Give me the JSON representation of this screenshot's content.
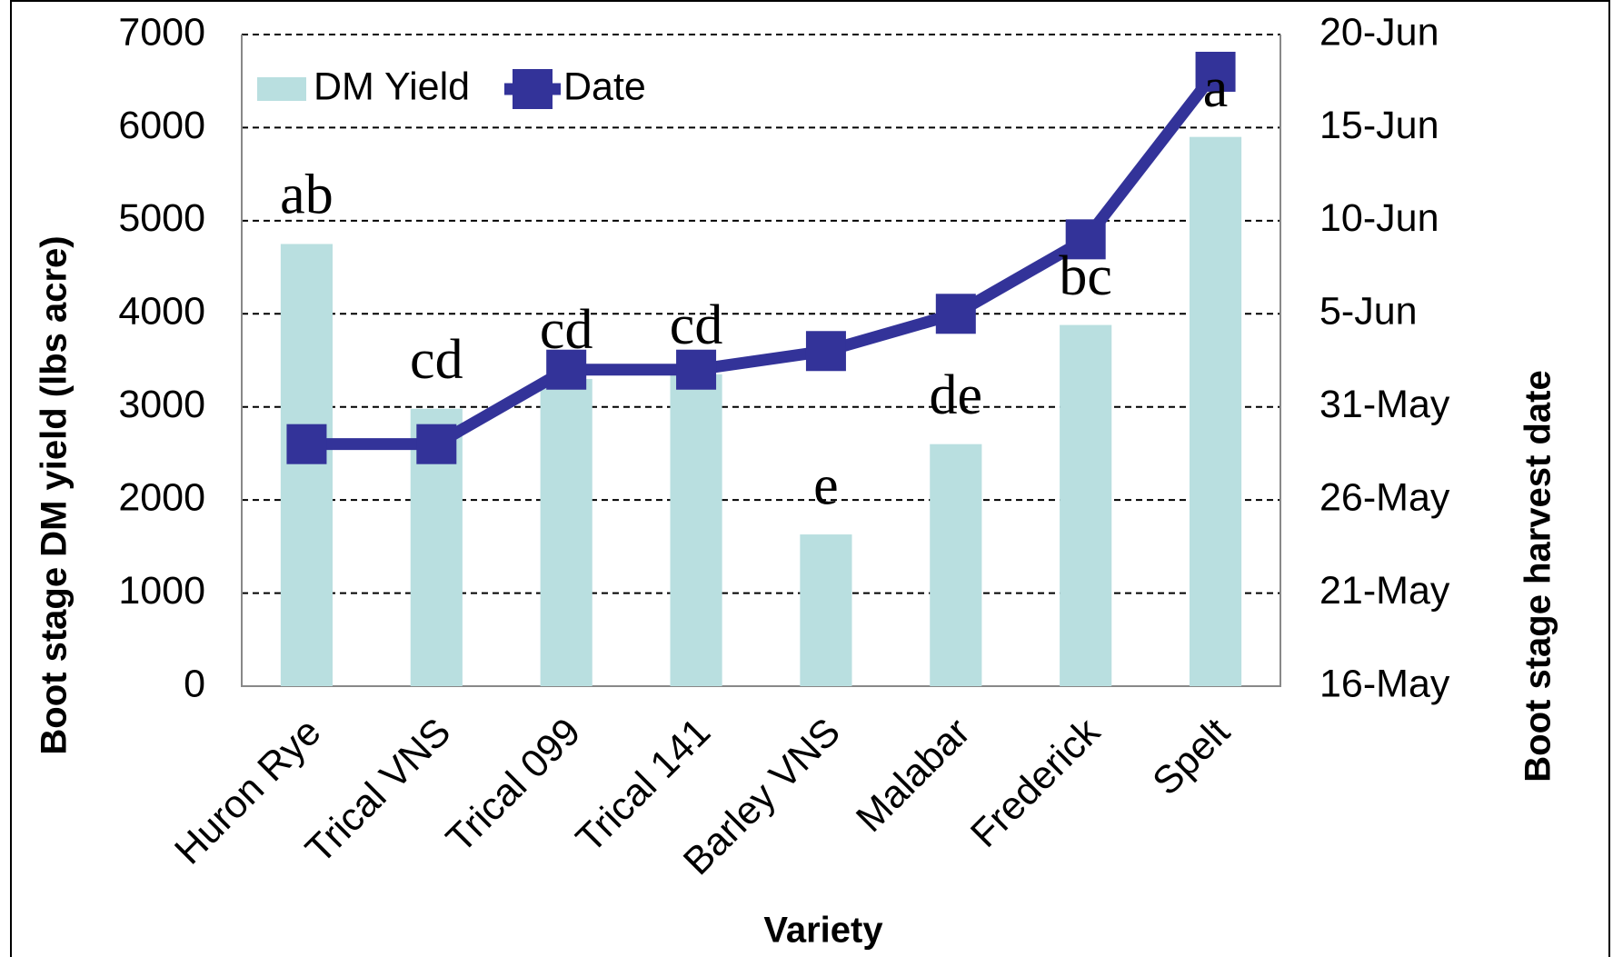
{
  "chart_data": {
    "type": "bar",
    "categories": [
      "Huron Rye",
      "Trical VNS",
      "Trical 099",
      "Trical 141",
      "Barley VNS",
      "Malabar",
      "Frederick",
      "Spelt"
    ],
    "series": [
      {
        "name": "DM Yield",
        "color": "#b9dfe0",
        "values": [
          4750,
          2980,
          3300,
          3350,
          1630,
          2600,
          3880,
          5900
        ]
      },
      {
        "name": "Date",
        "type": "line",
        "axis": "y2",
        "color": "#333399",
        "values": [
          149,
          149,
          153,
          153,
          154,
          156,
          160,
          169
        ]
      }
    ],
    "annotations": [
      "ab",
      "cd",
      "cd",
      "cd",
      "e",
      "de",
      "bc",
      "a"
    ],
    "xlabel": "Variety",
    "ylabel": "Boot stage DM yield (lbs acre)",
    "y2label": "Boot stage harvest date",
    "ylim": [
      0,
      7000
    ],
    "yticks": [
      0,
      1000,
      2000,
      3000,
      4000,
      5000,
      6000,
      7000
    ],
    "y2lim": [
      136,
      171
    ],
    "y2ticks": [
      {
        "value": 136,
        "label": "16-May"
      },
      {
        "value": 141,
        "label": "21-May"
      },
      {
        "value": 146,
        "label": "26-May"
      },
      {
        "value": 151,
        "label": "31-May"
      },
      {
        "value": 156,
        "label": "5-Jun"
      },
      {
        "value": 161,
        "label": "10-Jun"
      },
      {
        "value": 166,
        "label": "15-Jun"
      },
      {
        "value": 171,
        "label": "20-Jun"
      }
    ],
    "grid": true,
    "legend": "upper left"
  }
}
